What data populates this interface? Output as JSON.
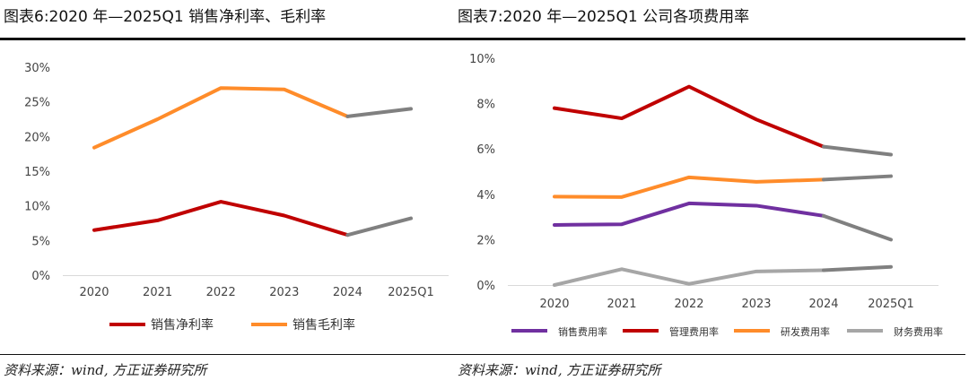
{
  "source_text": "资料来源：wind, 方正证券研究所",
  "chart_data": [
    {
      "type": "line",
      "title": "图表6:2020 年—2025Q1 销售净利率、毛利率",
      "categories": [
        "2020",
        "2021",
        "2022",
        "2023",
        "2024",
        "2025Q1"
      ],
      "y_ticks": [
        "0%",
        "5%",
        "10%",
        "15%",
        "20%",
        "25%",
        "30%"
      ],
      "ylim": [
        0,
        30
      ],
      "y_unit": "%",
      "grid": false,
      "legend_position": "bottom",
      "projection_color": "#808080",
      "series": [
        {
          "name": "销售净利率",
          "color": "#C00000",
          "values": [
            6.5,
            7.9,
            10.6,
            8.6,
            5.8,
            8.2
          ]
        },
        {
          "name": "销售毛利率",
          "color": "#FF8C2A",
          "values": [
            18.4,
            22.5,
            27.0,
            26.8,
            22.9,
            24.0
          ]
        }
      ]
    },
    {
      "type": "line",
      "title": "图表7:2020 年—2025Q1 公司各项费用率",
      "categories": [
        "2020",
        "2021",
        "2022",
        "2023",
        "2024",
        "2025Q1"
      ],
      "y_ticks": [
        "0%",
        "2%",
        "4%",
        "6%",
        "8%",
        "10%"
      ],
      "ylim": [
        0,
        10
      ],
      "y_unit": "%",
      "grid": false,
      "legend_position": "bottom",
      "projection_color": "#808080",
      "series": [
        {
          "name": "销售费用率",
          "color": "#7030A0",
          "values": [
            2.65,
            2.68,
            3.6,
            3.5,
            3.05,
            2.0
          ]
        },
        {
          "name": "管理费用率",
          "color": "#C00000",
          "values": [
            7.8,
            7.35,
            8.75,
            7.3,
            6.1,
            5.75
          ]
        },
        {
          "name": "研发费用率",
          "color": "#FF8C2A",
          "values": [
            3.9,
            3.88,
            4.75,
            4.55,
            4.65,
            4.8
          ]
        },
        {
          "name": "财务费用率",
          "color": "#A6A6A6",
          "values": [
            0.0,
            0.7,
            0.05,
            0.6,
            0.65,
            0.8
          ]
        }
      ]
    }
  ]
}
